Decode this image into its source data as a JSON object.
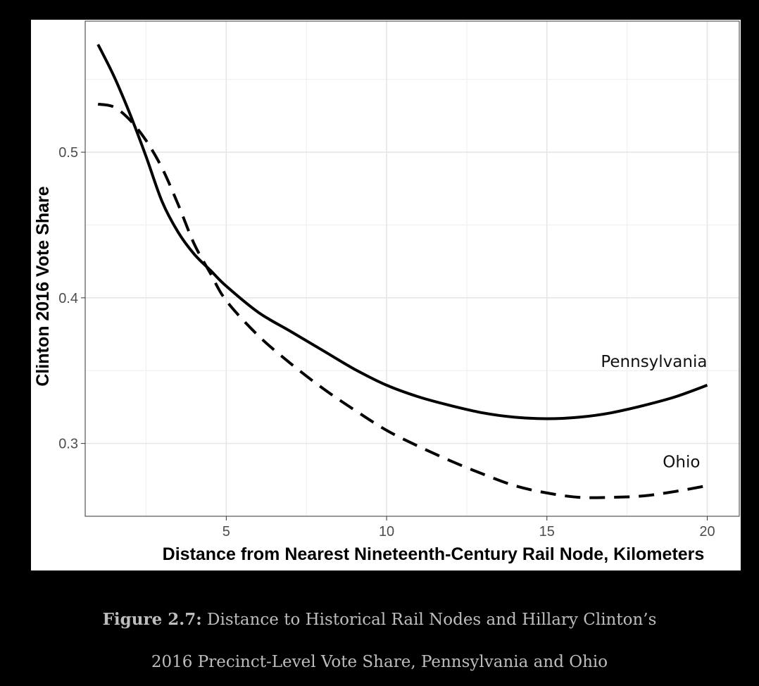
{
  "chart_data": {
    "type": "line",
    "xlabel": "Distance from Nearest Nineteenth-Century Rail Node, Kilometers",
    "ylabel": "Clinton 2016 Vote Share",
    "xlim": [
      0.6,
      21
    ],
    "ylim": [
      0.25,
      0.59
    ],
    "x_ticks": [
      5,
      10,
      15,
      20
    ],
    "y_ticks": [
      0.3,
      0.4,
      0.5
    ],
    "x_tick_labels": [
      "5",
      "10",
      "15",
      "20"
    ],
    "y_tick_labels": [
      "0.3",
      "0.4",
      "0.5"
    ],
    "grid": true,
    "legend": "none (series labelled directly at right end)",
    "series": [
      {
        "name": "Pennsylvania",
        "line_style": "solid",
        "x": [
          1.0,
          1.5,
          2.0,
          2.5,
          3.0,
          3.5,
          4.0,
          4.5,
          5.0,
          6.0,
          7.0,
          8.0,
          9.0,
          10.0,
          11.0,
          12.0,
          13.0,
          14.0,
          15.0,
          16.0,
          17.0,
          18.0,
          19.0,
          20.0
        ],
        "y": [
          0.574,
          0.552,
          0.526,
          0.497,
          0.466,
          0.445,
          0.43,
          0.419,
          0.408,
          0.39,
          0.377,
          0.364,
          0.351,
          0.34,
          0.332,
          0.326,
          0.321,
          0.318,
          0.317,
          0.318,
          0.321,
          0.326,
          0.332,
          0.34
        ]
      },
      {
        "name": "Ohio",
        "line_style": "dashed",
        "x": [
          1.0,
          1.5,
          2.0,
          2.5,
          3.0,
          3.5,
          4.0,
          4.5,
          5.0,
          6.0,
          7.0,
          8.0,
          9.0,
          10.0,
          11.0,
          12.0,
          13.0,
          14.0,
          15.0,
          16.0,
          17.0,
          18.0,
          19.0,
          20.0
        ],
        "y": [
          0.533,
          0.531,
          0.522,
          0.508,
          0.489,
          0.464,
          0.437,
          0.417,
          0.398,
          0.374,
          0.355,
          0.338,
          0.323,
          0.309,
          0.298,
          0.288,
          0.279,
          0.271,
          0.266,
          0.263,
          0.263,
          0.264,
          0.267,
          0.271
        ]
      }
    ]
  },
  "caption": {
    "label": "Figure 2.7:",
    "line1": "Distance to Historical Rail Nodes and Hillary Clinton’s",
    "line2": "2016 Precinct-Level Vote Share, Pennsylvania and Ohio"
  }
}
